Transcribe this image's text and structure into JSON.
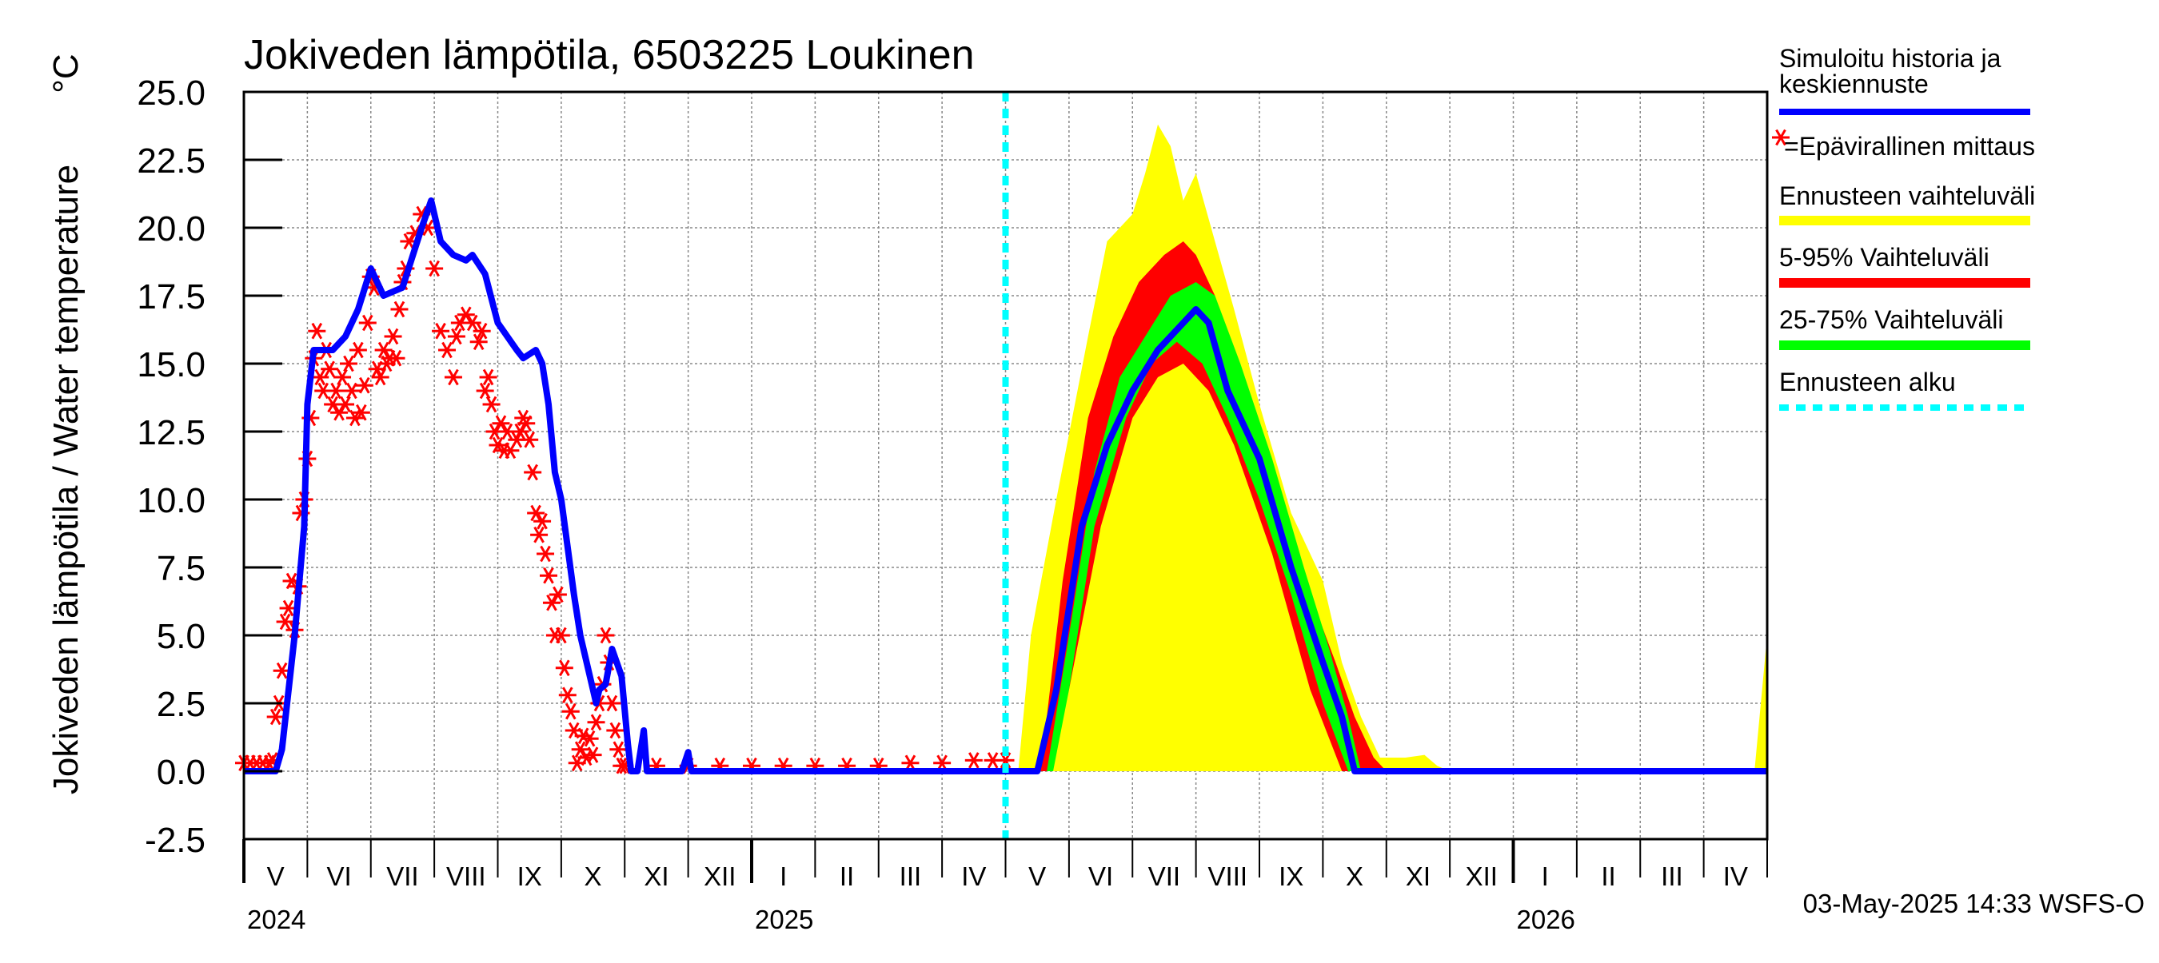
{
  "chart_data": {
    "type": "line",
    "title": "Jokiveden lämpötila, 6503225 Loukinen",
    "ylabel": "Jokiveden lämpötila / Water temperature",
    "yunit": "°C",
    "ylim": [
      -2.5,
      25.0
    ],
    "yticks": [
      "25.0",
      "22.5",
      "20.0",
      "17.5",
      "15.0",
      "12.5",
      "10.0",
      "7.5",
      "5.0",
      "2.5",
      "0.0",
      "-2.5"
    ],
    "xlim_months": [
      0,
      24
    ],
    "month_labels": [
      "V",
      "VI",
      "VII",
      "VIII",
      "IX",
      "X",
      "XI",
      "XII",
      "I",
      "II",
      "III",
      "IV",
      "V",
      "VI",
      "VII",
      "VIII",
      "IX",
      "X",
      "XI",
      "XII",
      "I",
      "II",
      "III",
      "IV"
    ],
    "year_labels": [
      {
        "label": "2024",
        "month_index": 0
      },
      {
        "label": "2025",
        "month_index": 8
      },
      {
        "label": "2026",
        "month_index": 20
      }
    ],
    "forecast_start_month": 12.0,
    "legend": [
      {
        "label": "Simuloitu historia ja keskiennuste",
        "color": "#0000ff",
        "style": "solid"
      },
      {
        "label": "=Epävirallinen mittaus",
        "color": "#ff0000",
        "style": "star"
      },
      {
        "label": "Ennusteen vaihteluväli",
        "color": "#ffff00",
        "style": "solid"
      },
      {
        "label": "5-95% Vaihteluväli",
        "color": "#ff0000",
        "style": "solid"
      },
      {
        "label": "25-75% Vaihteluväli",
        "color": "#00ff00",
        "style": "solid"
      },
      {
        "label": "Ennusteen alku",
        "color": "#00ffff",
        "style": "dashed"
      }
    ],
    "footer": "03-May-2025 14:33 WSFS-O",
    "series": [
      {
        "name": "Simuloitu historia ja keskiennuste",
        "color": "#0000ff",
        "points": [
          [
            0,
            0
          ],
          [
            0.5,
            0
          ],
          [
            0.6,
            0.8
          ],
          [
            0.8,
            5
          ],
          [
            0.95,
            9
          ],
          [
            1.0,
            13.5
          ],
          [
            1.1,
            15.5
          ],
          [
            1.4,
            15.5
          ],
          [
            1.6,
            16
          ],
          [
            1.8,
            17
          ],
          [
            2.0,
            18.5
          ],
          [
            2.2,
            17.5
          ],
          [
            2.5,
            17.8
          ],
          [
            2.8,
            20
          ],
          [
            2.95,
            21
          ],
          [
            3.1,
            19.5
          ],
          [
            3.3,
            19
          ],
          [
            3.5,
            18.8
          ],
          [
            3.6,
            19
          ],
          [
            3.8,
            18.3
          ],
          [
            4.0,
            16.5
          ],
          [
            4.15,
            16
          ],
          [
            4.3,
            15.5
          ],
          [
            4.4,
            15.2
          ],
          [
            4.6,
            15.5
          ],
          [
            4.7,
            15
          ],
          [
            4.8,
            13.5
          ],
          [
            4.9,
            11
          ],
          [
            5.0,
            10
          ],
          [
            5.2,
            6.5
          ],
          [
            5.3,
            5
          ],
          [
            5.5,
            3
          ],
          [
            5.55,
            2.5
          ],
          [
            5.6,
            3
          ],
          [
            5.7,
            3.2
          ],
          [
            5.8,
            4.5
          ],
          [
            5.95,
            3.5
          ],
          [
            6.05,
            1
          ],
          [
            6.1,
            0
          ],
          [
            6.2,
            0
          ],
          [
            6.3,
            1.5
          ],
          [
            6.35,
            0
          ],
          [
            6.9,
            0
          ],
          [
            7.0,
            0.7
          ],
          [
            7.05,
            0
          ],
          [
            12.5,
            0
          ],
          [
            12.8,
            3
          ],
          [
            13.2,
            9
          ],
          [
            13.6,
            12
          ],
          [
            14.0,
            14
          ],
          [
            14.4,
            15.5
          ],
          [
            14.8,
            16.5
          ],
          [
            15.0,
            17
          ],
          [
            15.2,
            16.5
          ],
          [
            15.5,
            14
          ],
          [
            16.0,
            11.5
          ],
          [
            16.5,
            7.5
          ],
          [
            17.0,
            4
          ],
          [
            17.3,
            2
          ],
          [
            17.5,
            0
          ],
          [
            24,
            0
          ]
        ]
      },
      {
        "name": "Ennusteen vaihteluväli",
        "color": "#ffff00",
        "upper": [
          [
            12.2,
            0
          ],
          [
            12.4,
            5
          ],
          [
            12.8,
            10
          ],
          [
            13.3,
            16
          ],
          [
            13.6,
            19.5
          ],
          [
            14.0,
            20.5
          ],
          [
            14.2,
            22
          ],
          [
            14.4,
            23.8
          ],
          [
            14.6,
            23
          ],
          [
            14.8,
            21
          ],
          [
            15.0,
            22
          ],
          [
            15.3,
            19.5
          ],
          [
            15.6,
            17
          ],
          [
            16.0,
            13.5
          ],
          [
            16.5,
            9.5
          ],
          [
            17.0,
            7
          ],
          [
            17.3,
            4
          ],
          [
            17.6,
            2
          ],
          [
            17.9,
            0.5
          ],
          [
            18.3,
            0.5
          ],
          [
            18.6,
            0.6
          ],
          [
            18.8,
            0.2
          ],
          [
            19.0,
            0
          ],
          [
            23.8,
            0
          ],
          [
            24,
            5
          ]
        ],
        "lower": [
          [
            24,
            0
          ],
          [
            12.5,
            0
          ]
        ]
      },
      {
        "name": "5-95% Vaihteluväli",
        "color": "#ff0000",
        "upper": [
          [
            12.55,
            0
          ],
          [
            12.9,
            7
          ],
          [
            13.3,
            13
          ],
          [
            13.7,
            16
          ],
          [
            14.1,
            18
          ],
          [
            14.5,
            19
          ],
          [
            14.8,
            19.5
          ],
          [
            15.0,
            19
          ],
          [
            15.3,
            17.5
          ],
          [
            15.8,
            14
          ],
          [
            16.3,
            10
          ],
          [
            16.8,
            6.5
          ],
          [
            17.2,
            4
          ],
          [
            17.5,
            2
          ],
          [
            17.8,
            0.5
          ],
          [
            18.0,
            0
          ]
        ],
        "lower": [
          [
            17.3,
            0
          ],
          [
            16.8,
            3
          ],
          [
            16.2,
            8
          ],
          [
            15.6,
            12
          ],
          [
            15.2,
            14
          ],
          [
            14.8,
            15
          ],
          [
            14.4,
            14.5
          ],
          [
            14.0,
            13
          ],
          [
            13.5,
            9
          ],
          [
            13.0,
            3
          ],
          [
            12.7,
            0
          ]
        ]
      },
      {
        "name": "25-75% Vaihteluväli",
        "color": "#00ff00",
        "upper": [
          [
            12.65,
            0
          ],
          [
            13.0,
            5
          ],
          [
            13.4,
            11
          ],
          [
            13.8,
            14.5
          ],
          [
            14.2,
            16
          ],
          [
            14.6,
            17.5
          ],
          [
            15.0,
            18
          ],
          [
            15.3,
            17.5
          ],
          [
            15.7,
            15
          ],
          [
            16.2,
            11.5
          ],
          [
            16.7,
            7.5
          ],
          [
            17.1,
            4.5
          ],
          [
            17.4,
            2
          ],
          [
            17.6,
            0
          ]
        ],
        "lower": [
          [
            17.4,
            0
          ],
          [
            17.0,
            2.5
          ],
          [
            16.5,
            6.5
          ],
          [
            16.0,
            10
          ],
          [
            15.5,
            13
          ],
          [
            15.1,
            15
          ],
          [
            14.7,
            15.8
          ],
          [
            14.3,
            15
          ],
          [
            13.9,
            13
          ],
          [
            13.4,
            9
          ],
          [
            13.0,
            3
          ],
          [
            12.75,
            0
          ]
        ]
      },
      {
        "name": "Epävirallinen mittaus",
        "color": "#ff0000",
        "style": "star",
        "points": [
          [
            0.0,
            0.3
          ],
          [
            0.1,
            0.3
          ],
          [
            0.2,
            0.3
          ],
          [
            0.3,
            0.3
          ],
          [
            0.4,
            0.3
          ],
          [
            0.45,
            0.4
          ],
          [
            0.5,
            2
          ],
          [
            0.55,
            2.5
          ],
          [
            0.6,
            3.7
          ],
          [
            0.65,
            5.5
          ],
          [
            0.7,
            6
          ],
          [
            0.75,
            7
          ],
          [
            0.8,
            5.2
          ],
          [
            0.85,
            6.8
          ],
          [
            0.9,
            9.5
          ],
          [
            0.95,
            10
          ],
          [
            1.0,
            11.5
          ],
          [
            1.05,
            13
          ],
          [
            1.1,
            15.2
          ],
          [
            1.15,
            16.2
          ],
          [
            1.2,
            14.5
          ],
          [
            1.25,
            14
          ],
          [
            1.3,
            15.5
          ],
          [
            1.35,
            14.8
          ],
          [
            1.4,
            13.5
          ],
          [
            1.45,
            14
          ],
          [
            1.5,
            13.2
          ],
          [
            1.55,
            14.5
          ],
          [
            1.6,
            13.5
          ],
          [
            1.65,
            15
          ],
          [
            1.7,
            14
          ],
          [
            1.75,
            13
          ],
          [
            1.8,
            15.5
          ],
          [
            1.85,
            13.2
          ],
          [
            1.9,
            14.2
          ],
          [
            1.95,
            16.5
          ],
          [
            2.0,
            18.2
          ],
          [
            2.05,
            17.8
          ],
          [
            2.1,
            14.8
          ],
          [
            2.15,
            14.5
          ],
          [
            2.2,
            15.5
          ],
          [
            2.25,
            15
          ],
          [
            2.3,
            15.2
          ],
          [
            2.35,
            16
          ],
          [
            2.4,
            15.2
          ],
          [
            2.45,
            17
          ],
          [
            2.5,
            18
          ],
          [
            2.55,
            18.5
          ],
          [
            2.6,
            19.5
          ],
          [
            2.7,
            19.8
          ],
          [
            2.8,
            20.5
          ],
          [
            2.9,
            20
          ],
          [
            3.0,
            18.5
          ],
          [
            3.1,
            16.2
          ],
          [
            3.2,
            15.5
          ],
          [
            3.3,
            14.5
          ],
          [
            3.35,
            16
          ],
          [
            3.4,
            16.5
          ],
          [
            3.5,
            16.8
          ],
          [
            3.6,
            16.5
          ],
          [
            3.7,
            15.8
          ],
          [
            3.75,
            16.2
          ],
          [
            3.8,
            14
          ],
          [
            3.85,
            14.5
          ],
          [
            3.9,
            13.5
          ],
          [
            3.95,
            12.5
          ],
          [
            4.0,
            12
          ],
          [
            4.05,
            12.8
          ],
          [
            4.1,
            11.8
          ],
          [
            4.15,
            12.5
          ],
          [
            4.2,
            11.8
          ],
          [
            4.3,
            12.2
          ],
          [
            4.35,
            12.5
          ],
          [
            4.4,
            13
          ],
          [
            4.45,
            12.8
          ],
          [
            4.5,
            12.2
          ],
          [
            4.55,
            11
          ],
          [
            4.6,
            9.5
          ],
          [
            4.65,
            8.7
          ],
          [
            4.7,
            9.2
          ],
          [
            4.75,
            8
          ],
          [
            4.8,
            7.2
          ],
          [
            4.85,
            6.2
          ],
          [
            4.9,
            5
          ],
          [
            4.95,
            6.5
          ],
          [
            5.0,
            5
          ],
          [
            5.05,
            3.8
          ],
          [
            5.1,
            2.8
          ],
          [
            5.15,
            2.2
          ],
          [
            5.2,
            1.5
          ],
          [
            5.25,
            0.3
          ],
          [
            5.3,
            0.8
          ],
          [
            5.35,
            1.3
          ],
          [
            5.4,
            0.5
          ],
          [
            5.45,
            1.2
          ],
          [
            5.5,
            0.6
          ],
          [
            5.55,
            1.8
          ],
          [
            5.6,
            2.5
          ],
          [
            5.65,
            3.2
          ],
          [
            5.7,
            5
          ],
          [
            5.75,
            4
          ],
          [
            5.8,
            2.5
          ],
          [
            5.85,
            1.5
          ],
          [
            5.9,
            0.8
          ],
          [
            5.95,
            0.2
          ],
          [
            6.0,
            0.2
          ],
          [
            6.5,
            0.2
          ],
          [
            7.0,
            0.2
          ],
          [
            7.5,
            0.2
          ],
          [
            8.0,
            0.2
          ],
          [
            8.5,
            0.2
          ],
          [
            9.0,
            0.2
          ],
          [
            9.5,
            0.2
          ],
          [
            10.0,
            0.2
          ],
          [
            10.5,
            0.3
          ],
          [
            11.0,
            0.3
          ],
          [
            11.5,
            0.4
          ],
          [
            11.8,
            0.4
          ],
          [
            12.0,
            0.4
          ]
        ]
      }
    ]
  }
}
